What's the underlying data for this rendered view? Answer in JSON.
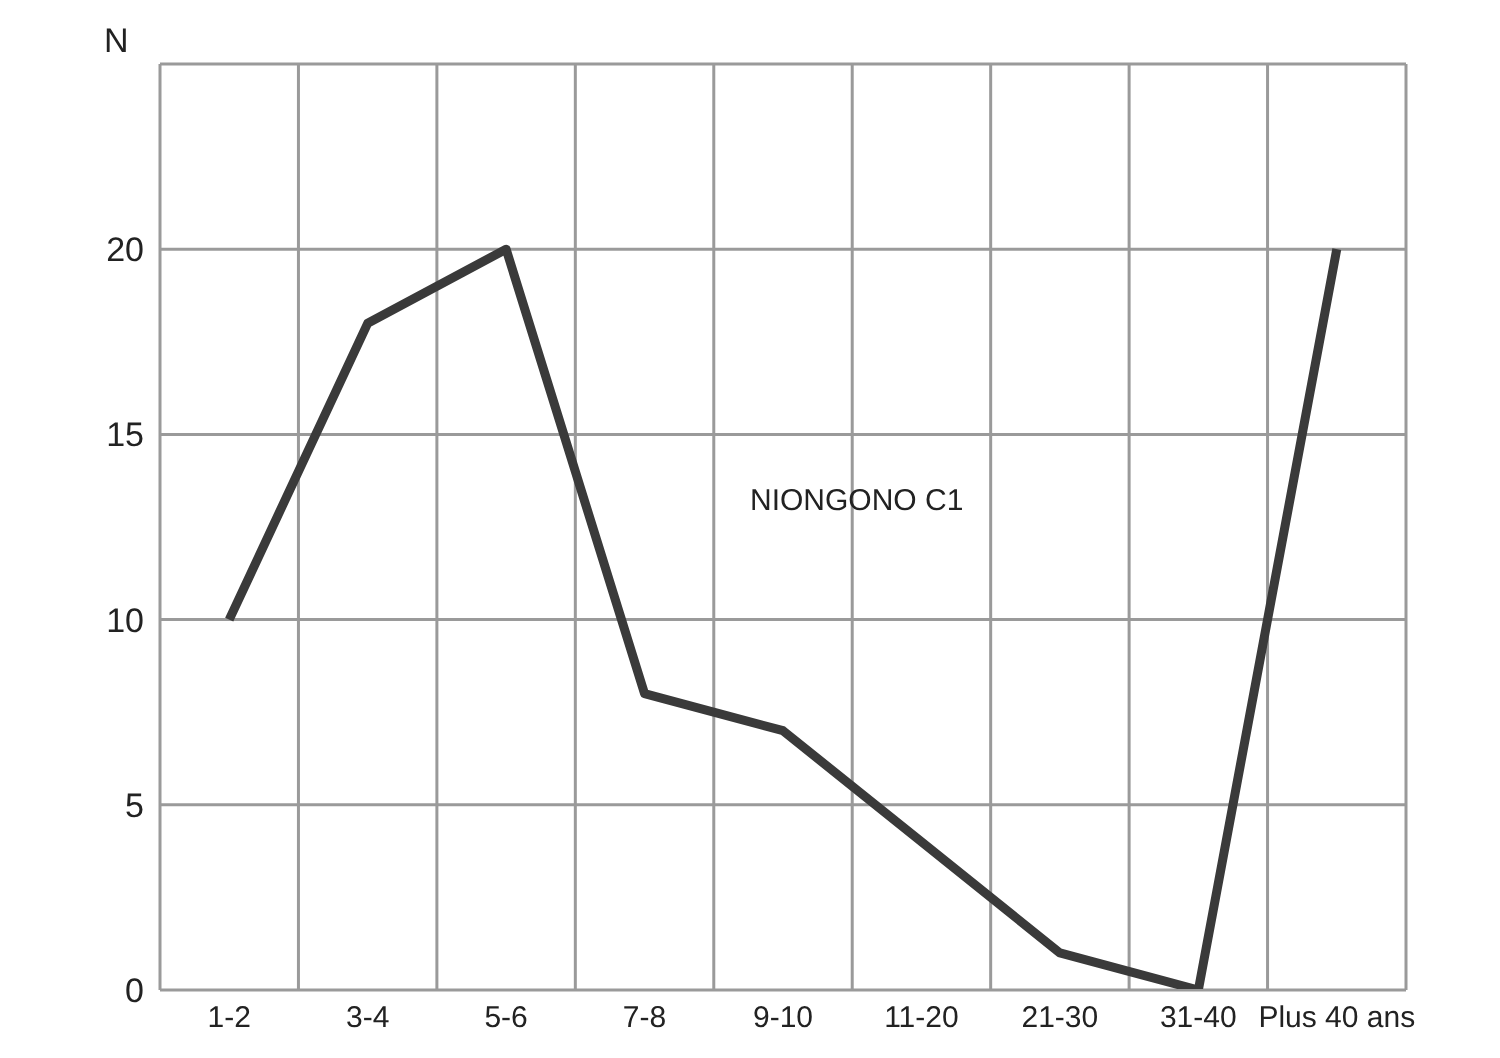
{
  "chart_data": {
    "type": "line",
    "ylabel": "N",
    "categories": [
      "1-2",
      "3-4",
      "5-6",
      "7-8",
      "9-10",
      "11-20",
      "21-30",
      "31-40",
      "Plus 40 ans"
    ],
    "series": [
      {
        "color": "#3a3a3a",
        "values": [
          10,
          18,
          20,
          8,
          7,
          4,
          1,
          0,
          20
        ]
      }
    ],
    "ylim": [
      0,
      25
    ],
    "yticks": [
      0,
      5,
      10,
      15,
      20,
      {
        "value": 25,
        "label": null
      }
    ],
    "grid": true,
    "marker": "none",
    "line_style": "solid",
    "annotations": [
      "NIONGONO C1"
    ]
  }
}
